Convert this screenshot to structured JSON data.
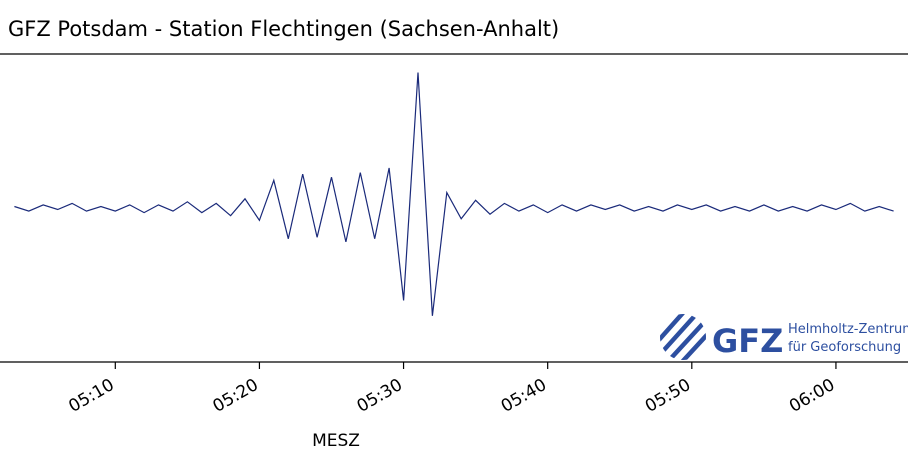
{
  "chart_data": {
    "type": "line",
    "title": "GFZ Potsdam - Station Flechtingen (Sachsen-Anhalt)",
    "x_label": "MESZ",
    "logo": {
      "mark": "GFZ",
      "line1": "Helmholtz-Zentrum",
      "line2": "für Geoforschung"
    },
    "x": [
      "05:03",
      "05:04",
      "05:05",
      "05:06",
      "05:07",
      "05:08",
      "05:09",
      "05:10",
      "05:11",
      "05:12",
      "05:13",
      "05:14",
      "05:15",
      "05:16",
      "05:17",
      "05:18",
      "05:19",
      "05:20",
      "05:21",
      "05:22",
      "05:23",
      "05:24",
      "05:25",
      "05:26",
      "05:27",
      "05:28",
      "05:29",
      "05:30",
      "05:31",
      "05:32",
      "05:33",
      "05:34",
      "05:35",
      "05:36",
      "05:37",
      "05:38",
      "05:39",
      "05:40",
      "05:41",
      "05:42",
      "05:43",
      "05:44",
      "05:45",
      "05:46",
      "05:47",
      "05:48",
      "05:49",
      "05:50",
      "05:51",
      "05:52",
      "05:53",
      "05:54",
      "05:55",
      "05:56",
      "05:57",
      "05:58",
      "05:59",
      "06:00",
      "06:01",
      "06:02",
      "06:03",
      "06:04"
    ],
    "series": [
      {
        "color": "#1a2a7a",
        "values": [
          0.01,
          -0.02,
          0.02,
          -0.01,
          0.03,
          -0.02,
          0.01,
          -0.02,
          0.02,
          -0.03,
          0.02,
          -0.02,
          0.04,
          -0.03,
          0.03,
          -0.05,
          0.06,
          -0.08,
          0.18,
          -0.2,
          0.22,
          -0.19,
          0.2,
          -0.22,
          0.23,
          -0.2,
          0.26,
          -0.6,
          0.88,
          -0.7,
          0.1,
          -0.07,
          0.05,
          -0.04,
          0.03,
          -0.02,
          0.02,
          -0.03,
          0.02,
          -0.02,
          0.02,
          -0.01,
          0.02,
          -0.02,
          0.01,
          -0.02,
          0.02,
          -0.01,
          0.02,
          -0.02,
          0.01,
          -0.02,
          0.02,
          -0.02,
          0.01,
          -0.02,
          0.02,
          -0.01,
          0.03,
          -0.02,
          0.01,
          -0.02
        ]
      }
    ],
    "xlim": [
      "05:02",
      "06:05"
    ],
    "ylim": [
      -1,
      1
    ],
    "xticks": [
      "05:10",
      "05:20",
      "05:30",
      "05:40",
      "05:50",
      "06:00"
    ]
  }
}
